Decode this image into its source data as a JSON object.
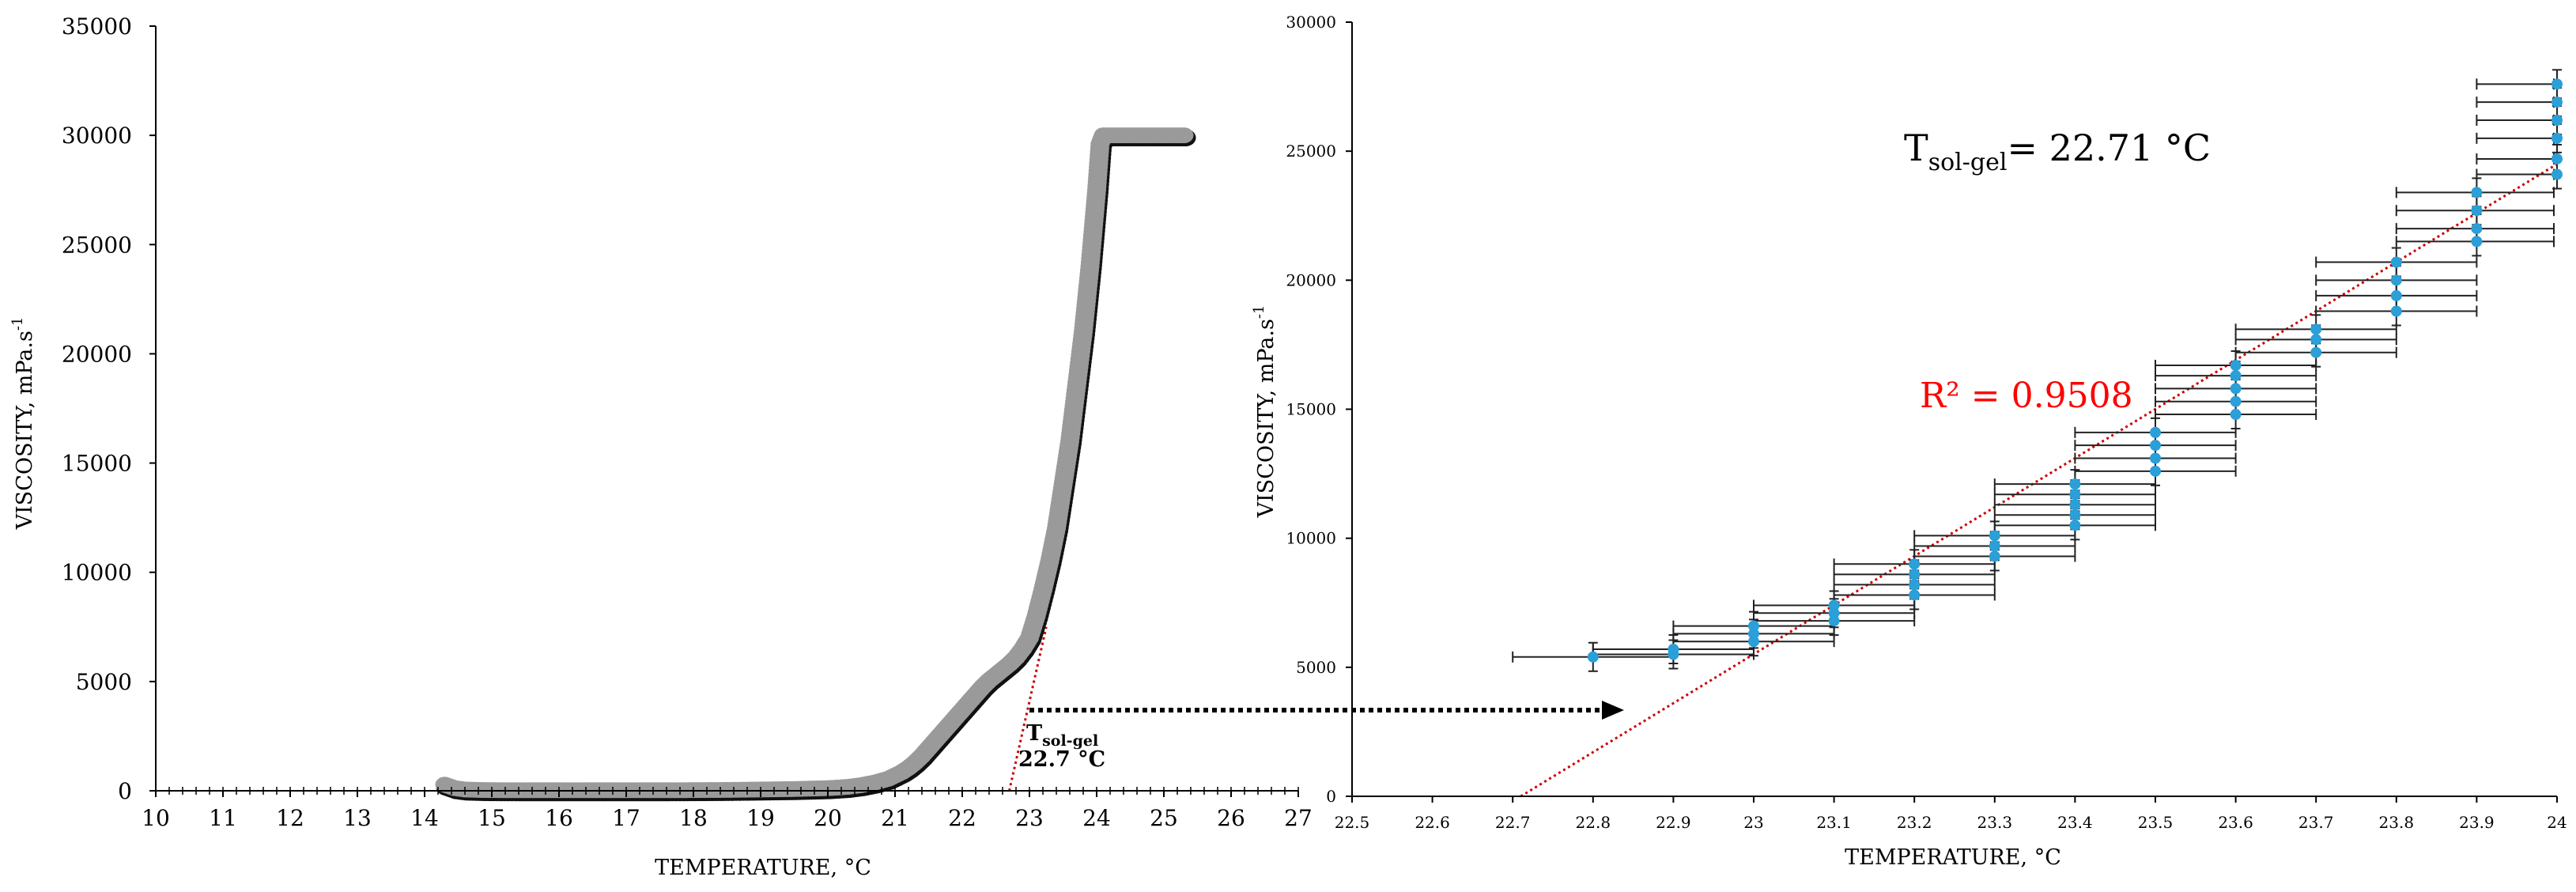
{
  "chart_data": [
    {
      "type": "scatter",
      "xlabel": "TEMPERATURE, °C",
      "xlabel_main": "TEMPERATURE, ",
      "xlabel_unit": "°C",
      "ylabel": "VISCOSITY, mPa.s-1",
      "ylabel_main": "VISCOSITY, mPa.s",
      "ylabel_exp": "-1",
      "xlim": [
        10,
        27
      ],
      "ylim": [
        0,
        35000
      ],
      "xticks": [
        10,
        11,
        12,
        13,
        14,
        15,
        16,
        17,
        18,
        19,
        20,
        21,
        22,
        23,
        24,
        25,
        26,
        27
      ],
      "yticks": [
        0,
        5000,
        10000,
        15000,
        20000,
        25000,
        30000,
        35000
      ],
      "series": [
        {
          "marker_color": "#9a9a9a",
          "points": [
            [
              14.3,
              280
            ],
            [
              14.45,
              120
            ],
            [
              14.6,
              60
            ],
            [
              14.8,
              40
            ],
            [
              15.0,
              30
            ],
            [
              15.5,
              25
            ],
            [
              16.0,
              25
            ],
            [
              16.5,
              25
            ],
            [
              17.0,
              25
            ],
            [
              17.5,
              25
            ],
            [
              18.0,
              30
            ],
            [
              18.5,
              40
            ],
            [
              19.0,
              60
            ],
            [
              19.5,
              80
            ],
            [
              20.0,
              120
            ],
            [
              20.3,
              180
            ],
            [
              20.5,
              260
            ],
            [
              20.7,
              380
            ],
            [
              20.9,
              550
            ],
            [
              21.0,
              700
            ],
            [
              21.1,
              850
            ],
            [
              21.2,
              1050
            ],
            [
              21.3,
              1300
            ],
            [
              21.4,
              1600
            ],
            [
              21.5,
              1950
            ],
            [
              21.6,
              2300
            ],
            [
              21.7,
              2650
            ],
            [
              21.8,
              3000
            ],
            [
              21.9,
              3350
            ],
            [
              22.0,
              3700
            ],
            [
              22.1,
              4050
            ],
            [
              22.2,
              4400
            ],
            [
              22.3,
              4750
            ],
            [
              22.4,
              5050
            ],
            [
              22.5,
              5300
            ],
            [
              22.6,
              5550
            ],
            [
              22.7,
              5800
            ],
            [
              22.8,
              6100
            ],
            [
              22.9,
              6500
            ],
            [
              23.0,
              7000
            ],
            [
              23.1,
              8000
            ],
            [
              23.2,
              9200
            ],
            [
              23.3,
              10500
            ],
            [
              23.4,
              12000
            ],
            [
              23.5,
              14000
            ],
            [
              23.6,
              16000
            ],
            [
              23.7,
              18500
            ],
            [
              23.8,
              21000
            ],
            [
              23.9,
              24000
            ],
            [
              24.0,
              27500
            ],
            [
              24.05,
              29600
            ],
            [
              24.1,
              30000
            ],
            [
              24.3,
              30000
            ],
            [
              24.5,
              30000
            ],
            [
              24.7,
              30000
            ],
            [
              24.9,
              30000
            ],
            [
              25.1,
              30000
            ],
            [
              25.3,
              30000
            ]
          ]
        }
      ],
      "trendline": {
        "x": [
          22.7,
          23.25
        ],
        "y": [
          0,
          7500
        ],
        "color": "#cc0000"
      },
      "annotation": {
        "label_main": "T",
        "label_sub": "sol-gel",
        "value": "22.7 °C"
      }
    },
    {
      "type": "scatter",
      "xlabel": "TEMPERATURE, °C",
      "xlabel_main": "TEMPERATURE, ",
      "xlabel_unit": "°C",
      "ylabel": "VISCOSITY, mPa.s-1",
      "ylabel_main": "VISCOSITY, mPa.s",
      "ylabel_exp": "-1",
      "xlim": [
        22.5,
        24
      ],
      "ylim": [
        0,
        30000
      ],
      "xticks": [
        22.5,
        22.6,
        22.7,
        22.8,
        22.9,
        23,
        23.1,
        23.2,
        23.3,
        23.4,
        23.5,
        23.6,
        23.7,
        23.8,
        23.9,
        24
      ],
      "yticks": [
        0,
        5000,
        10000,
        15000,
        20000,
        25000,
        30000
      ],
      "series": [
        {
          "marker_color": "#2a9fd8",
          "error_x": 0.1,
          "points": [
            [
              22.8,
              5400
            ],
            [
              22.9,
              5500
            ],
            [
              22.9,
              5700
            ],
            [
              23.0,
              6000
            ],
            [
              23.0,
              6300
            ],
            [
              23.0,
              6600
            ],
            [
              23.1,
              6800
            ],
            [
              23.1,
              7100
            ],
            [
              23.1,
              7400
            ],
            [
              23.2,
              7800
            ],
            [
              23.2,
              8200
            ],
            [
              23.2,
              8600
            ],
            [
              23.2,
              9000
            ],
            [
              23.3,
              9300
            ],
            [
              23.3,
              9700
            ],
            [
              23.3,
              10100
            ],
            [
              23.4,
              10500
            ],
            [
              23.4,
              10900
            ],
            [
              23.4,
              11300
            ],
            [
              23.4,
              11700
            ],
            [
              23.4,
              12100
            ],
            [
              23.5,
              12600
            ],
            [
              23.5,
              13100
            ],
            [
              23.5,
              13600
            ],
            [
              23.5,
              14100
            ],
            [
              23.6,
              14800
            ],
            [
              23.6,
              15300
            ],
            [
              23.6,
              15800
            ],
            [
              23.6,
              16300
            ],
            [
              23.6,
              16700
            ],
            [
              23.7,
              17200
            ],
            [
              23.7,
              17700
            ],
            [
              23.7,
              18100
            ],
            [
              23.8,
              18800
            ],
            [
              23.8,
              19400
            ],
            [
              23.8,
              20000
            ],
            [
              23.8,
              20700
            ],
            [
              23.9,
              21500
            ],
            [
              23.9,
              22000
            ],
            [
              23.9,
              22700
            ],
            [
              23.9,
              23400
            ],
            [
              24.0,
              24100
            ],
            [
              24.0,
              24700
            ],
            [
              24.0,
              25500
            ],
            [
              24.0,
              26200
            ],
            [
              24.0,
              26900
            ],
            [
              24.0,
              27600
            ]
          ]
        }
      ],
      "trendline": {
        "x": [
          22.71,
          24.0
        ],
        "y": [
          0,
          24500
        ],
        "color": "#cc0000"
      },
      "r2_label": "R² = 0.9508",
      "tsolgel_main": "T",
      "tsolgel_sub": "sol-gel",
      "tsolgel_value": "= 22.71 °C"
    }
  ],
  "arrow_color": "#000000"
}
